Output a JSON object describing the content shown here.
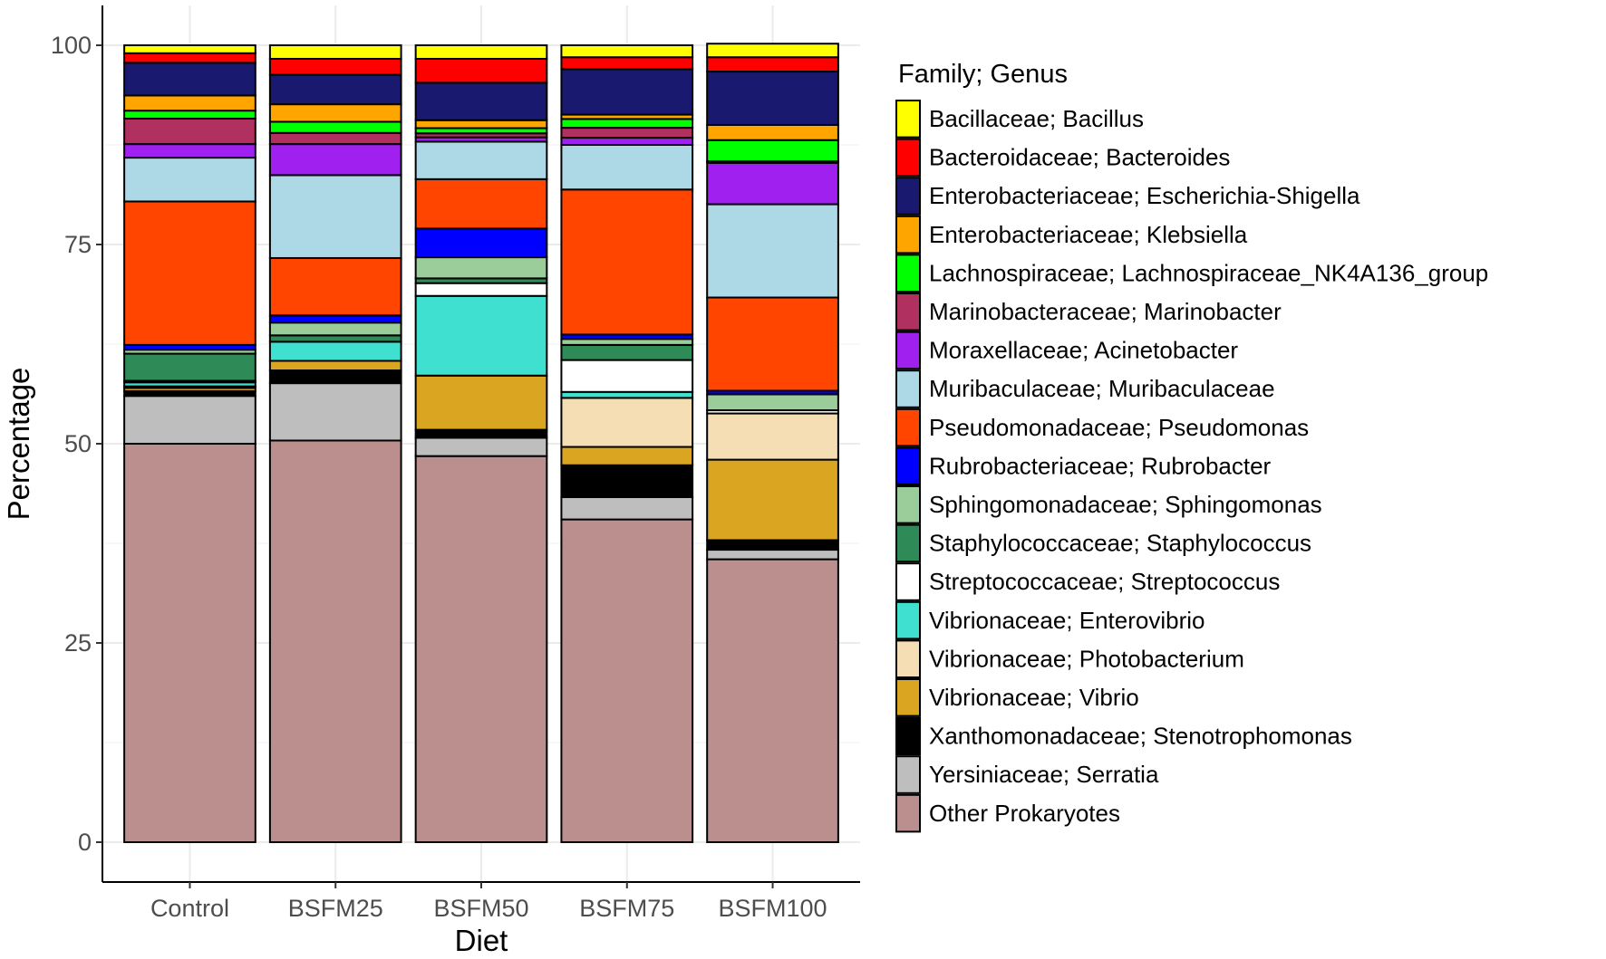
{
  "chart_data": {
    "type": "bar",
    "stacked": true,
    "xlabel": "Diet",
    "ylabel": "Percentage",
    "ylim": [
      -5,
      105
    ],
    "yticks": [
      0,
      25,
      50,
      75,
      100
    ],
    "grid": true,
    "legend_title": "Family; Genus",
    "legend_position": "right",
    "categories": [
      "Control",
      "BSFM25",
      "BSFM50",
      "BSFM75",
      "BSFM100"
    ],
    "series": [
      {
        "name": "Other Prokaryotes",
        "color": "#BC8F8F",
        "values": [
          50.0,
          50.4,
          48.45,
          40.5,
          35.5
        ]
      },
      {
        "name": "Yersiniaceae; Serratia",
        "color": "#BEBEBE",
        "values": [
          6.0,
          7.2,
          2.3,
          2.8,
          1.2
        ]
      },
      {
        "name": "Xanthomonadaceae; Stenotrophomonas",
        "color": "#000000",
        "values": [
          0.6,
          1.6,
          1.0,
          4.0,
          1.2
        ]
      },
      {
        "name": "Vibrionaceae; Vibrio",
        "color": "#DAA520",
        "values": [
          0.4,
          1.2,
          6.8,
          2.3,
          10.1
        ]
      },
      {
        "name": "Vibrionaceae; Photobacterium",
        "color": "#F5DEB3",
        "values": [
          0.2,
          0,
          0,
          6.15,
          5.8
        ]
      },
      {
        "name": "Vibrionaceae; Enterovibrio",
        "color": "#40E0D0",
        "values": [
          0.5,
          2.4,
          10.0,
          0.75,
          0
        ]
      },
      {
        "name": "Streptococcaceae; Streptococcus",
        "color": "#FFFFFF",
        "values": [
          0.2,
          0,
          1.6,
          4.0,
          0.4
        ]
      },
      {
        "name": "Staphylococcaceae; Staphylococcus",
        "color": "#2E8B57",
        "values": [
          3.4,
          0.8,
          0.6,
          1.9,
          0
        ]
      },
      {
        "name": "Sphingomonadaceae; Sphingomonas",
        "color": "#9ACD9A",
        "values": [
          0.5,
          1.6,
          2.65,
          0.75,
          2.0
        ]
      },
      {
        "name": "Rubrobacteriaceae; Rubrobacter",
        "color": "#0000FF",
        "values": [
          0.6,
          0.9,
          3.6,
          0.55,
          0.45
        ]
      },
      {
        "name": "Pseudomonadaceae; Pseudomonas",
        "color": "#FF4500",
        "values": [
          18.0,
          7.2,
          6.2,
          18.2,
          11.7
        ]
      },
      {
        "name": "Muribaculaceae; Muribaculaceae",
        "color": "#ADD8E6",
        "values": [
          5.5,
          10.4,
          4.7,
          5.6,
          11.7
        ]
      },
      {
        "name": "Moraxellaceae; Acinetobacter",
        "color": "#A020F0",
        "values": [
          1.7,
          3.9,
          0.55,
          0.9,
          5.2
        ]
      },
      {
        "name": "Marinobacteraceae; Marinobacter",
        "color": "#B03060",
        "values": [
          3.2,
          1.4,
          0.5,
          1.25,
          0.2
        ]
      },
      {
        "name": "Lachnospiraceae; Lachnospiraceae_NK4A136_group",
        "color": "#00FF00",
        "values": [
          1.0,
          1.4,
          0.65,
          1.1,
          2.65
        ]
      },
      {
        "name": "Enterobacteriaceae; Klebsiella",
        "color": "#FFA500",
        "values": [
          1.9,
          2.2,
          1.0,
          0.55,
          1.9
        ]
      },
      {
        "name": "Enterobacteriaceae; Escherichia-Shigella",
        "color": "#191970",
        "values": [
          4.1,
          3.7,
          4.7,
          5.7,
          6.7
        ]
      },
      {
        "name": "Bacteroidaceae; Bacteroides",
        "color": "#FF0000",
        "values": [
          1.2,
          2.0,
          3.0,
          1.5,
          1.8
        ]
      },
      {
        "name": "Bacillaceae; Bacillus",
        "color": "#FFFF00",
        "values": [
          1.0,
          1.7,
          1.7,
          1.5,
          1.7
        ]
      }
    ]
  }
}
